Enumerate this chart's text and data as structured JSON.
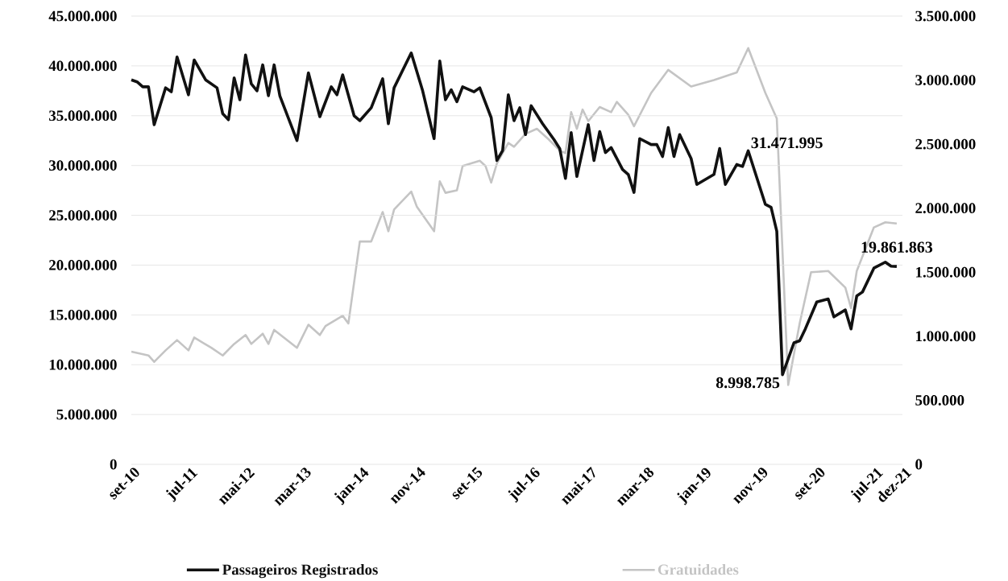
{
  "chart_data": {
    "type": "line",
    "xlim": [
      "2010-09",
      "2021-12"
    ],
    "xticks": [
      {
        "value": "2010-09",
        "label": "set-10"
      },
      {
        "value": "2011-07",
        "label": "jul-11"
      },
      {
        "value": "2012-05",
        "label": "mai-12"
      },
      {
        "value": "2013-03",
        "label": "mar-13"
      },
      {
        "value": "2014-01",
        "label": "jan-14"
      },
      {
        "value": "2014-11",
        "label": "nov-14"
      },
      {
        "value": "2015-09",
        "label": "set-15"
      },
      {
        "value": "2016-07",
        "label": "jul-16"
      },
      {
        "value": "2017-05",
        "label": "mai-17"
      },
      {
        "value": "2018-03",
        "label": "mar-18"
      },
      {
        "value": "2019-01",
        "label": "jan-19"
      },
      {
        "value": "2019-11",
        "label": "nov-19"
      },
      {
        "value": "2020-09",
        "label": "set-20"
      },
      {
        "value": "2021-07",
        "label": "jul-21"
      },
      {
        "value": "2021-12",
        "label": "dez-21"
      }
    ],
    "ylim": [
      0,
      45000000
    ],
    "yticks": [
      0,
      {
        "value": 5000000,
        "label": "5.000.000"
      },
      {
        "value": 10000000,
        "label": "10.000.000"
      },
      {
        "value": 15000000,
        "label": "15.000.000"
      },
      {
        "value": 20000000,
        "label": "20.000.000"
      },
      {
        "value": 25000000,
        "label": "25.000.000"
      },
      {
        "value": 30000000,
        "label": "30.000.000"
      },
      {
        "value": 35000000,
        "label": "35.000.000"
      },
      {
        "value": 40000000,
        "label": "40.000.000"
      },
      {
        "value": 45000000,
        "label": "45.000.000"
      }
    ],
    "y2lim": [
      0,
      3500000
    ],
    "y2ticks": [
      0,
      {
        "value": 500000,
        "label": "500.000"
      },
      {
        "value": 1000000,
        "label": "1.000.000"
      },
      {
        "value": 1500000,
        "label": "1.500.000"
      },
      {
        "value": 2000000,
        "label": "2.000.000"
      },
      {
        "value": 2500000,
        "label": "2.500.000"
      },
      {
        "value": 3000000,
        "label": "3.000.000"
      },
      {
        "value": 3500000,
        "label": "3.500.000"
      }
    ],
    "grid": "y",
    "legend": "bottom",
    "annotations": [
      {
        "text": "31.471.995",
        "x": "2019-09",
        "y": 31471995
      },
      {
        "text": "8.998.785",
        "x": "2020-03",
        "y": 8998785
      },
      {
        "text": "19.861.863",
        "x": "2021-11",
        "y": 19861863
      }
    ],
    "series": [
      {
        "name": "Passageiros Registrados",
        "color": "#111111",
        "x": [
          "2010-09",
          "2010-10",
          "2010-11",
          "2010-12",
          "2011-01",
          "2011-03",
          "2011-04",
          "2011-05",
          "2011-07",
          "2011-08",
          "2011-10",
          "2011-12",
          "2012-01",
          "2012-02",
          "2012-03",
          "2012-04",
          "2012-05",
          "2012-06",
          "2012-07",
          "2012-08",
          "2012-09",
          "2012-10",
          "2012-11",
          "2013-02",
          "2013-04",
          "2013-06",
          "2013-08",
          "2013-09",
          "2013-10",
          "2013-12",
          "2014-01",
          "2014-03",
          "2014-05",
          "2014-06",
          "2014-07",
          "2014-10",
          "2014-12",
          "2015-02",
          "2015-03",
          "2015-04",
          "2015-05",
          "2015-06",
          "2015-07",
          "2015-09",
          "2015-10",
          "2015-12",
          "2016-01",
          "2016-02",
          "2016-03",
          "2016-04",
          "2016-05",
          "2016-06",
          "2016-07",
          "2016-09",
          "2016-11",
          "2016-12",
          "2017-01",
          "2017-02",
          "2017-03",
          "2017-05",
          "2017-06",
          "2017-07",
          "2017-08",
          "2017-09",
          "2017-11",
          "2017-12",
          "2018-01",
          "2018-02",
          "2018-04",
          "2018-05",
          "2018-06",
          "2018-07",
          "2018-08",
          "2018-09",
          "2018-11",
          "2018-12",
          "2019-03",
          "2019-04",
          "2019-05",
          "2019-07",
          "2019-08",
          "2019-09",
          "2019-12",
          "2020-01",
          "2020-02",
          "2020-03",
          "2020-05",
          "2020-06",
          "2020-07",
          "2020-09",
          "2020-11",
          "2020-12",
          "2021-02",
          "2021-03",
          "2021-04",
          "2021-05",
          "2021-07",
          "2021-09",
          "2021-10",
          "2021-11"
        ],
        "values": [
          38600000,
          38400000,
          37900000,
          37900000,
          34100000,
          37800000,
          37400000,
          40900000,
          37100000,
          40600000,
          38600000,
          37800000,
          35200000,
          34600000,
          38800000,
          36600000,
          41100000,
          38200000,
          37500000,
          40100000,
          37000000,
          40100000,
          37000000,
          32500000,
          39300000,
          34900000,
          37900000,
          37100000,
          39100000,
          35000000,
          34500000,
          35800000,
          38700000,
          34200000,
          37800000,
          41300000,
          37500000,
          32700000,
          40500000,
          36600000,
          37600000,
          36400000,
          37900000,
          37400000,
          37800000,
          34800000,
          30500000,
          31500000,
          37100000,
          34500000,
          35800000,
          33100000,
          36000000,
          34200000,
          32600000,
          31700000,
          28700000,
          33300000,
          28900000,
          34100000,
          30500000,
          33400000,
          31300000,
          31800000,
          29600000,
          29100000,
          27300000,
          32700000,
          32100000,
          32100000,
          30900000,
          33800000,
          30900000,
          33100000,
          30700000,
          28100000,
          29100000,
          31700000,
          28100000,
          30100000,
          29900000,
          31471995,
          26100000,
          25800000,
          23400000,
          8998785,
          12200000,
          12400000,
          13600000,
          16300000,
          16600000,
          14800000,
          15500000,
          13600000,
          16900000,
          17300000,
          19700000,
          20300000,
          19900000,
          19861863
        ]
      },
      {
        "name": "Gratuidades",
        "color": "#c4c4c4",
        "axis": "y2",
        "x": [
          "2010-09",
          "2010-12",
          "2011-01",
          "2011-03",
          "2011-05",
          "2011-07",
          "2011-08",
          "2011-11",
          "2012-01",
          "2012-03",
          "2012-05",
          "2012-06",
          "2012-08",
          "2012-09",
          "2012-10",
          "2013-02",
          "2013-04",
          "2013-06",
          "2013-07",
          "2013-10",
          "2013-11",
          "2014-01",
          "2014-03",
          "2014-05",
          "2014-06",
          "2014-07",
          "2014-10",
          "2014-11",
          "2015-02",
          "2015-03",
          "2015-04",
          "2015-06",
          "2015-07",
          "2015-10",
          "2015-11",
          "2015-12",
          "2016-01",
          "2016-03",
          "2016-04",
          "2016-06",
          "2016-08",
          "2016-10",
          "2016-12",
          "2017-01",
          "2017-02",
          "2017-03",
          "2017-04",
          "2017-05",
          "2017-07",
          "2017-09",
          "2017-10",
          "2017-12",
          "2018-01",
          "2018-04",
          "2018-07",
          "2018-11",
          "2019-03",
          "2019-07",
          "2019-09",
          "2019-12",
          "2020-02",
          "2020-04",
          "2020-06",
          "2020-08",
          "2020-11",
          "2021-02",
          "2021-03",
          "2021-04",
          "2021-07",
          "2021-09",
          "2021-11"
        ],
        "values": [
          880000,
          850000,
          800000,
          890000,
          970000,
          890000,
          990000,
          910000,
          850000,
          940000,
          1010000,
          940000,
          1020000,
          940000,
          1050000,
          910000,
          1090000,
          1010000,
          1080000,
          1160000,
          1100000,
          1740000,
          1740000,
          1970000,
          1820000,
          1990000,
          2130000,
          2010000,
          1820000,
          2210000,
          2120000,
          2140000,
          2330000,
          2370000,
          2330000,
          2200000,
          2350000,
          2510000,
          2480000,
          2580000,
          2620000,
          2540000,
          2450000,
          2430000,
          2750000,
          2620000,
          2770000,
          2680000,
          2790000,
          2750000,
          2830000,
          2730000,
          2640000,
          2900000,
          3080000,
          2950000,
          3000000,
          3060000,
          3250000,
          2900000,
          2700000,
          620000,
          1100000,
          1500000,
          1510000,
          1380000,
          1220000,
          1510000,
          1850000,
          1890000,
          1880000
        ]
      }
    ]
  }
}
